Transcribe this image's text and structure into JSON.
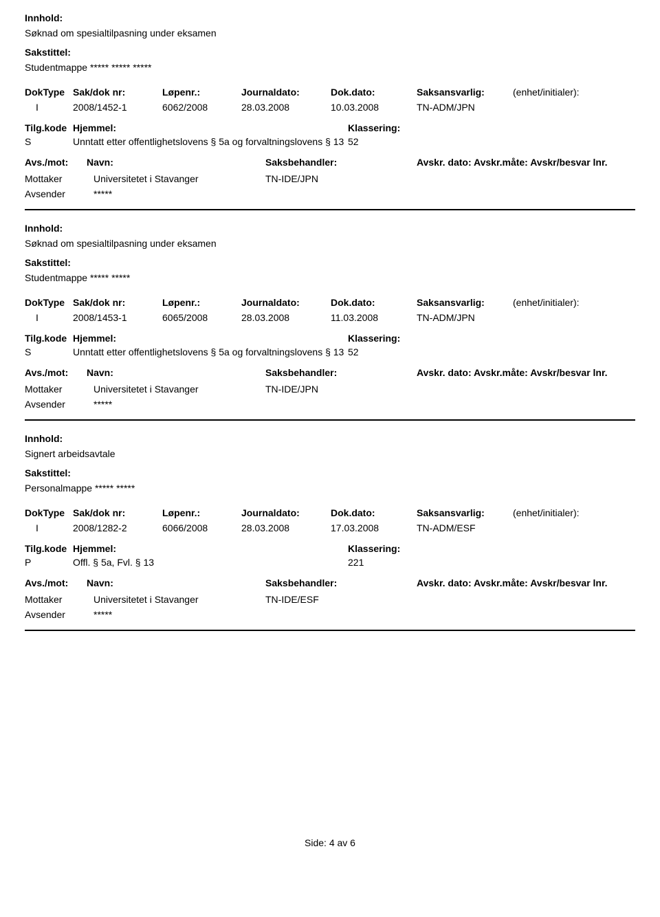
{
  "labels": {
    "innhold": "Innhold:",
    "sakstittel": "Sakstittel:",
    "doktype": "DokType",
    "sakdok": "Sak/dok nr:",
    "lopenr": "Løpenr.:",
    "journaldato": "Journaldato:",
    "dokdato": "Dok.dato:",
    "saksansvarlig": "Saksansvarlig:",
    "enhet": "(enhet/initialer):",
    "tilgkode": "Tilg.kode",
    "hjemmel": "Hjemmel:",
    "klassering": "Klassering:",
    "avsmot": "Avs./mot:",
    "navn": "Navn:",
    "saksbehandler": "Saksbehandler:",
    "avskr": "Avskr. dato: Avskr.måte: Avskr/besvar lnr.",
    "mottaker": "Mottaker",
    "avsender": "Avsender"
  },
  "records": [
    {
      "innhold": "Søknad om spesialtilpasning under eksamen",
      "sakstittel": "Studentmappe ***** ***** *****",
      "doktype": "I",
      "sakdok": "2008/1452-1",
      "lopenr": "6062/2008",
      "journaldato": "28.03.2008",
      "dokdato": "10.03.2008",
      "saksansvarlig": "TN-ADM/JPN",
      "tilgkode": "S",
      "hjemmel": "Unntatt etter offentlighetslovens § 5a og forvaltningslovens § 13",
      "klassering": "52",
      "mottaker_name": "Universitetet i Stavanger",
      "saksbehandler": "TN-IDE/JPN",
      "avsender_name": "*****"
    },
    {
      "innhold": "Søknad om spesialtilpasning under eksamen",
      "sakstittel": "Studentmappe ***** *****",
      "doktype": "I",
      "sakdok": "2008/1453-1",
      "lopenr": "6065/2008",
      "journaldato": "28.03.2008",
      "dokdato": "11.03.2008",
      "saksansvarlig": "TN-ADM/JPN",
      "tilgkode": "S",
      "hjemmel": "Unntatt etter offentlighetslovens § 5a og forvaltningslovens § 13",
      "klassering": "52",
      "mottaker_name": "Universitetet i Stavanger",
      "saksbehandler": "TN-IDE/JPN",
      "avsender_name": "*****"
    },
    {
      "innhold": "Signert arbeidsavtale",
      "sakstittel": "Personalmappe ***** *****",
      "doktype": "I",
      "sakdok": "2008/1282-2",
      "lopenr": "6066/2008",
      "journaldato": "28.03.2008",
      "dokdato": "17.03.2008",
      "saksansvarlig": "TN-ADM/ESF",
      "tilgkode": "P",
      "hjemmel": "Offl. § 5a, Fvl. § 13",
      "klassering": "221",
      "mottaker_name": "Universitetet i Stavanger",
      "saksbehandler": "TN-IDE/ESF",
      "avsender_name": "*****"
    }
  ],
  "footer": "Side: 4 av 6"
}
